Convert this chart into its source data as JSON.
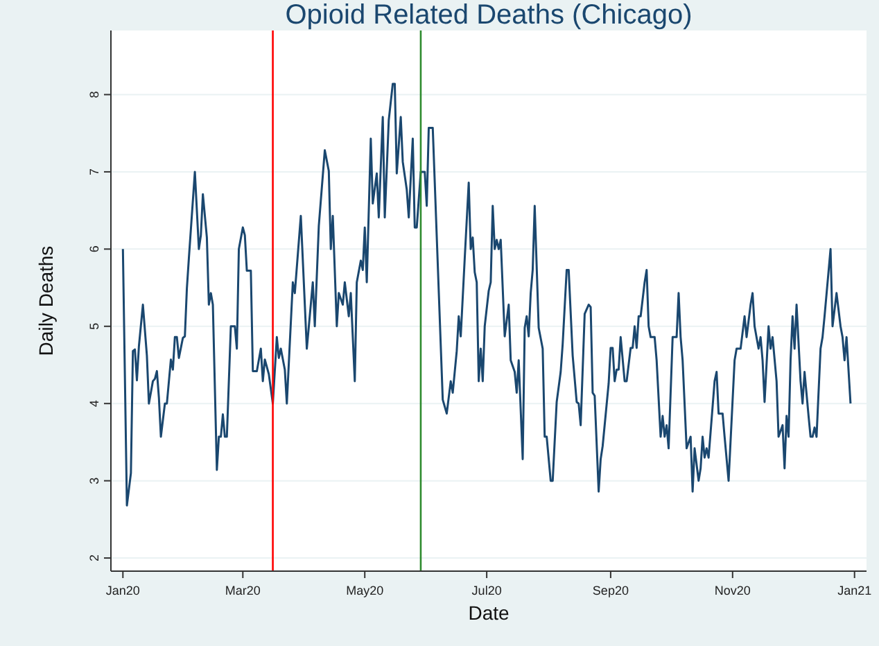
{
  "chart_data": {
    "type": "line",
    "title": "Opioid Related Deaths (Chicago)",
    "xlabel": "Date",
    "ylabel": "Daily Deaths",
    "xlim": [
      "2019-12-26",
      "2021-01-07"
    ],
    "ylim": [
      1.83,
      8.83
    ],
    "xticks": [
      {
        "value": "2020-01-01",
        "label": "Jan20"
      },
      {
        "value": "2020-03-01",
        "label": "Mar20"
      },
      {
        "value": "2020-05-01",
        "label": "May20"
      },
      {
        "value": "2020-07-01",
        "label": "Jul20"
      },
      {
        "value": "2020-09-01",
        "label": "Sep20"
      },
      {
        "value": "2020-11-01",
        "label": "Nov20"
      },
      {
        "value": "2021-01-01",
        "label": "Jan21"
      }
    ],
    "yticks": [
      2,
      3,
      4,
      5,
      6,
      7,
      8
    ],
    "grid": "y",
    "marker": "none",
    "line_style": "solid",
    "ref_lines": [
      {
        "axis": "x",
        "value": "2020-03-16",
        "label": null,
        "color": "#ff0000"
      },
      {
        "axis": "x",
        "value": "2020-05-29",
        "label": null,
        "color": "#2e8b2e"
      }
    ],
    "series": [
      {
        "color": "#1a476f",
        "x": [
          "2020-01-01",
          "2020-01-03",
          "2020-01-05",
          "2020-01-06",
          "2020-01-07",
          "2020-01-08",
          "2020-01-09",
          "2020-01-11",
          "2020-01-13",
          "2020-01-14",
          "2020-01-16",
          "2020-01-17",
          "2020-01-18",
          "2020-01-19",
          "2020-01-20",
          "2020-01-22",
          "2020-01-23",
          "2020-01-25",
          "2020-01-26",
          "2020-01-27",
          "2020-01-28",
          "2020-01-29",
          "2020-01-31",
          "2020-02-01",
          "2020-02-02",
          "2020-02-03",
          "2020-02-06",
          "2020-02-08",
          "2020-02-09",
          "2020-02-10",
          "2020-02-12",
          "2020-02-13",
          "2020-02-14",
          "2020-02-15",
          "2020-02-17",
          "2020-02-18",
          "2020-02-19",
          "2020-02-20",
          "2020-02-21",
          "2020-02-22",
          "2020-02-24",
          "2020-02-26",
          "2020-02-27",
          "2020-02-28",
          "2020-03-01",
          "2020-03-02",
          "2020-03-03",
          "2020-03-05",
          "2020-03-06",
          "2020-03-08",
          "2020-03-10",
          "2020-03-11",
          "2020-03-12",
          "2020-03-14",
          "2020-03-16",
          "2020-03-18",
          "2020-03-19",
          "2020-03-20",
          "2020-03-22",
          "2020-03-23",
          "2020-03-26",
          "2020-03-27",
          "2020-03-30",
          "2020-04-02",
          "2020-04-05",
          "2020-04-06",
          "2020-04-08",
          "2020-04-11",
          "2020-04-13",
          "2020-04-14",
          "2020-04-15",
          "2020-04-17",
          "2020-04-18",
          "2020-04-20",
          "2020-04-21",
          "2020-04-23",
          "2020-04-24",
          "2020-04-26",
          "2020-04-27",
          "2020-04-29",
          "2020-04-30",
          "2020-05-01",
          "2020-05-02",
          "2020-05-04",
          "2020-05-05",
          "2020-05-07",
          "2020-05-08",
          "2020-05-10",
          "2020-05-11",
          "2020-05-13",
          "2020-05-15",
          "2020-05-16",
          "2020-05-17",
          "2020-05-19",
          "2020-05-20",
          "2020-05-22",
          "2020-05-23",
          "2020-05-25",
          "2020-05-26",
          "2020-05-27",
          "2020-05-29",
          "2020-05-31",
          "2020-06-01",
          "2020-06-02",
          "2020-06-04",
          "2020-06-09",
          "2020-06-11",
          "2020-06-13",
          "2020-06-14",
          "2020-06-16",
          "2020-06-17",
          "2020-06-18",
          "2020-06-20",
          "2020-06-22",
          "2020-06-23",
          "2020-06-24",
          "2020-06-25",
          "2020-06-26",
          "2020-06-27",
          "2020-06-28",
          "2020-06-29",
          "2020-06-30",
          "2020-07-02",
          "2020-07-03",
          "2020-07-04",
          "2020-07-05",
          "2020-07-06",
          "2020-07-07",
          "2020-07-08",
          "2020-07-10",
          "2020-07-12",
          "2020-07-13",
          "2020-07-15",
          "2020-07-16",
          "2020-07-17",
          "2020-07-19",
          "2020-07-20",
          "2020-07-21",
          "2020-07-22",
          "2020-07-23",
          "2020-07-24",
          "2020-07-25",
          "2020-07-27",
          "2020-07-29",
          "2020-07-30",
          "2020-07-31",
          "2020-08-02",
          "2020-08-03",
          "2020-08-05",
          "2020-08-07",
          "2020-08-08",
          "2020-08-10",
          "2020-08-11",
          "2020-08-13",
          "2020-08-15",
          "2020-08-16",
          "2020-08-17",
          "2020-08-19",
          "2020-08-21",
          "2020-08-22",
          "2020-08-23",
          "2020-08-24",
          "2020-08-26",
          "2020-08-27",
          "2020-08-28",
          "2020-08-31",
          "2020-09-01",
          "2020-09-02",
          "2020-09-03",
          "2020-09-04",
          "2020-09-05",
          "2020-09-06",
          "2020-09-08",
          "2020-09-09",
          "2020-09-11",
          "2020-09-12",
          "2020-09-13",
          "2020-09-14",
          "2020-09-15",
          "2020-09-16",
          "2020-09-18",
          "2020-09-19",
          "2020-09-20",
          "2020-09-21",
          "2020-09-23",
          "2020-09-24",
          "2020-09-26",
          "2020-09-27",
          "2020-09-28",
          "2020-09-29",
          "2020-09-30",
          "2020-10-02",
          "2020-10-04",
          "2020-10-05",
          "2020-10-06",
          "2020-10-07",
          "2020-10-09",
          "2020-10-11",
          "2020-10-12",
          "2020-10-13",
          "2020-10-15",
          "2020-10-16",
          "2020-10-17",
          "2020-10-18",
          "2020-10-19",
          "2020-10-20",
          "2020-10-23",
          "2020-10-24",
          "2020-10-25",
          "2020-10-27",
          "2020-10-28",
          "2020-10-30",
          "2020-11-02",
          "2020-11-03",
          "2020-11-05",
          "2020-11-07",
          "2020-11-08",
          "2020-11-10",
          "2020-11-11",
          "2020-11-12",
          "2020-11-14",
          "2020-11-15",
          "2020-11-16",
          "2020-11-17",
          "2020-11-19",
          "2020-11-20",
          "2020-11-21",
          "2020-11-23",
          "2020-11-24",
          "2020-11-26",
          "2020-11-27",
          "2020-11-28",
          "2020-11-29",
          "2020-11-30",
          "2020-12-01",
          "2020-12-02",
          "2020-12-03",
          "2020-12-05",
          "2020-12-06",
          "2020-12-07",
          "2020-12-09",
          "2020-12-10",
          "2020-12-11",
          "2020-12-12",
          "2020-12-13",
          "2020-12-15",
          "2020-12-16",
          "2020-12-17",
          "2020-12-20",
          "2020-12-21",
          "2020-12-23",
          "2020-12-25",
          "2020-12-26",
          "2020-12-27",
          "2020-12-28",
          "2020-12-30"
        ],
        "values": [
          6.0,
          2.68,
          3.1,
          4.68,
          4.7,
          4.3,
          4.74,
          5.28,
          4.62,
          4.0,
          4.29,
          4.32,
          4.42,
          4.08,
          3.57,
          4.0,
          4.0,
          4.57,
          4.44,
          4.86,
          4.86,
          4.59,
          4.85,
          4.87,
          5.49,
          5.88,
          7.0,
          6.0,
          6.18,
          6.71,
          6.15,
          5.28,
          5.43,
          5.28,
          3.14,
          3.57,
          3.57,
          3.86,
          3.57,
          3.57,
          5.0,
          5.0,
          4.71,
          6.0,
          6.28,
          6.18,
          5.72,
          5.72,
          4.42,
          4.42,
          4.71,
          4.29,
          4.57,
          4.38,
          4.0,
          4.86,
          4.59,
          4.71,
          4.44,
          4.0,
          5.57,
          5.43,
          6.43,
          4.71,
          5.57,
          5.0,
          6.3,
          7.28,
          7.01,
          6.0,
          6.43,
          5.0,
          5.43,
          5.28,
          5.57,
          5.13,
          5.43,
          4.29,
          5.57,
          5.85,
          5.73,
          6.28,
          5.57,
          7.43,
          6.59,
          6.98,
          6.41,
          7.71,
          6.41,
          7.67,
          8.14,
          8.14,
          6.98,
          7.71,
          7.13,
          6.77,
          6.41,
          7.43,
          6.28,
          6.28,
          7.0,
          7.0,
          6.56,
          7.57,
          7.57,
          4.05,
          3.87,
          4.29,
          4.14,
          4.68,
          5.13,
          4.87,
          5.88,
          6.86,
          6.0,
          6.15,
          5.7,
          5.57,
          4.29,
          4.71,
          4.29,
          5.0,
          5.46,
          5.57,
          6.56,
          6.0,
          6.12,
          6.0,
          6.12,
          4.87,
          5.28,
          4.56,
          4.41,
          4.14,
          4.56,
          3.28,
          4.98,
          5.13,
          4.87,
          5.43,
          5.73,
          6.56,
          4.98,
          4.71,
          3.57,
          3.57,
          3.0,
          3.0,
          4.02,
          4.41,
          4.77,
          5.73,
          5.73,
          4.62,
          4.02,
          4.0,
          3.72,
          5.16,
          5.28,
          5.25,
          4.14,
          4.1,
          2.86,
          3.28,
          3.45,
          4.26,
          4.72,
          4.72,
          4.29,
          4.44,
          4.44,
          4.86,
          4.29,
          4.29,
          4.72,
          4.72,
          5.0,
          4.72,
          5.13,
          5.13,
          5.57,
          5.73,
          5.0,
          4.86,
          4.86,
          4.56,
          3.57,
          3.84,
          3.57,
          3.72,
          3.42,
          4.86,
          4.86,
          5.43,
          4.86,
          4.56,
          3.42,
          3.57,
          2.86,
          3.42,
          3.0,
          3.16,
          3.57,
          3.3,
          3.42,
          3.3,
          4.29,
          4.41,
          3.87,
          3.87,
          3.57,
          3.0,
          4.56,
          4.71,
          4.71,
          5.13,
          4.86,
          5.28,
          5.43,
          5.0,
          4.71,
          4.86,
          4.56,
          4.02,
          5.0,
          4.71,
          4.86,
          4.29,
          3.57,
          3.72,
          3.16,
          3.84,
          3.57,
          4.56,
          5.13,
          4.71,
          5.28,
          4.29,
          4.0,
          4.41,
          3.84,
          3.57,
          3.57,
          3.69,
          3.57,
          4.71,
          4.86,
          5.13,
          6.0,
          5.0,
          5.43,
          5.0,
          4.86,
          4.56,
          4.86,
          4.0
        ]
      }
    ]
  }
}
